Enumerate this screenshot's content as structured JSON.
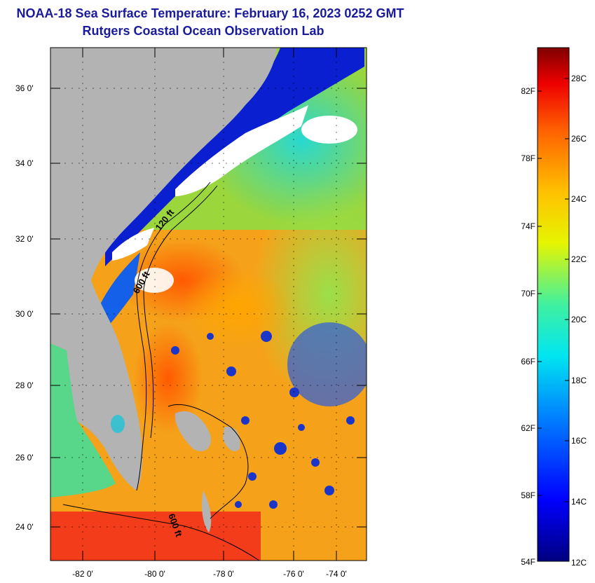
{
  "title": {
    "line1": "NOAA-18 Sea Surface Temperature:  February 16, 2023 0252 GMT",
    "line2": "Rutgers Coastal Ocean Observation Lab"
  },
  "map": {
    "lat_labels": [
      "36 0'",
      "34 0'",
      "32 0'",
      "30 0'",
      "28 0'",
      "26 0'",
      "24 0'"
    ],
    "lon_labels": [
      "-82 0'",
      "-80 0'",
      "-78 0'",
      "-76 0'",
      "-74 0'"
    ],
    "contour_labels": [
      "120 ft",
      "600 ft",
      "600 ft"
    ],
    "colors": {
      "land": "#b3b3b3",
      "cloud": "#ffffff",
      "contour": "#000000"
    }
  },
  "colorbar": {
    "fahrenheit": [
      "82F",
      "78F",
      "74F",
      "70F",
      "66F",
      "62F",
      "58F",
      "54F"
    ],
    "celsius": [
      "28C",
      "26C",
      "24C",
      "22C",
      "20C",
      "18C",
      "16C",
      "14C",
      "12C"
    ],
    "min_f": 54,
    "max_f": 84
  }
}
